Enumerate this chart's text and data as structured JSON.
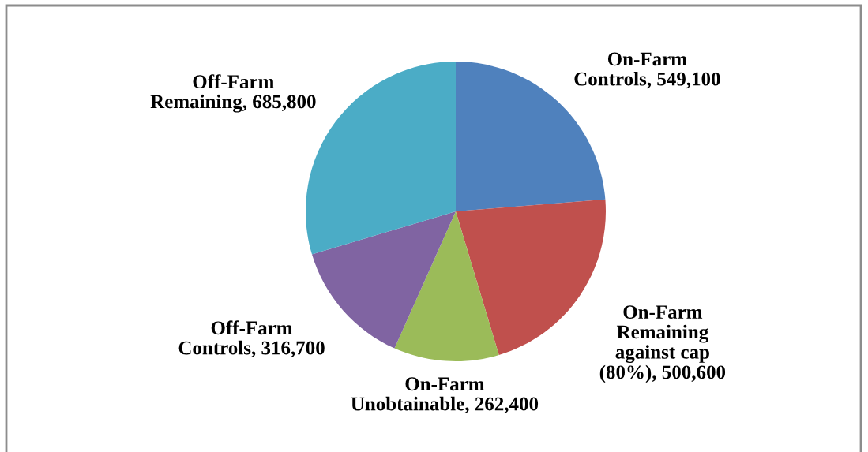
{
  "chart_data": {
    "type": "pie",
    "categories": [
      "On-Farm Controls",
      "On-Farm Remaining against cap (80%)",
      "On-Farm Unobtainable",
      "Off-Farm Controls",
      "Off-Farm Remaining"
    ],
    "values": [
      549100,
      500600,
      262400,
      316700,
      685800
    ],
    "colors": [
      "#4f81bd",
      "#c0504d",
      "#9bbb59",
      "#8064a2",
      "#4bacc6"
    ],
    "value_labels": [
      "549,100",
      "500,600",
      "262,400",
      "316,700",
      "685,800"
    ]
  }
}
